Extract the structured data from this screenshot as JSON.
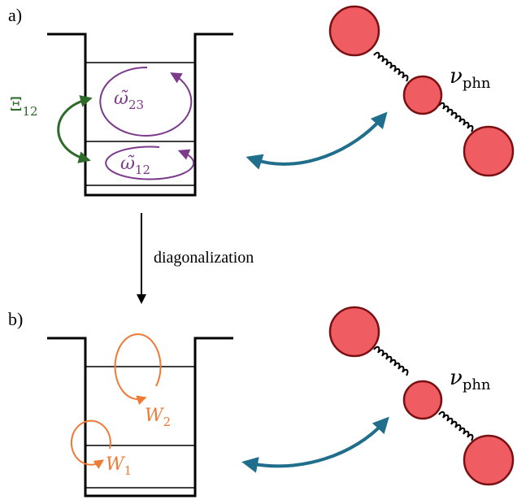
{
  "panel_a": {
    "label": "a)",
    "coupling": {
      "symbol": "Ξ",
      "sub": "12"
    },
    "loop_upper": {
      "symbol": "ω̃",
      "sub": "23"
    },
    "loop_lower": {
      "symbol": "ω̃",
      "sub": "12"
    },
    "phonon": {
      "symbol": "ν",
      "sub": "phn"
    }
  },
  "arrow": {
    "label": "diagonalization"
  },
  "panel_b": {
    "label": "b)",
    "loop_upper": {
      "symbol": "W",
      "sub": "2"
    },
    "loop_lower": {
      "symbol": "W",
      "sub": "1"
    },
    "phonon": {
      "symbol": "ν",
      "sub": "phn"
    }
  },
  "colors": {
    "ink": "#000000",
    "purple": "#7b3a8a",
    "green": "#2e6b2a",
    "orange": "#ee7a36",
    "teal": "#1f6e8c",
    "bead_fill": "#ef5d63",
    "bead_stroke": "#7a1012"
  }
}
